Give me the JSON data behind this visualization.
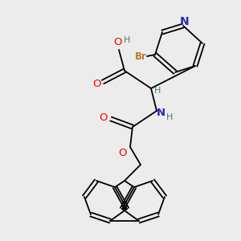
{
  "bg_color": "#ececec",
  "bond_color": "#000000",
  "colors": {
    "N": "#2929c0",
    "O": "#ff0000",
    "Br": "#c07820",
    "C": "#000000",
    "H": "#4a7a7a"
  },
  "font_size": 8.5,
  "lw": 1.3
}
